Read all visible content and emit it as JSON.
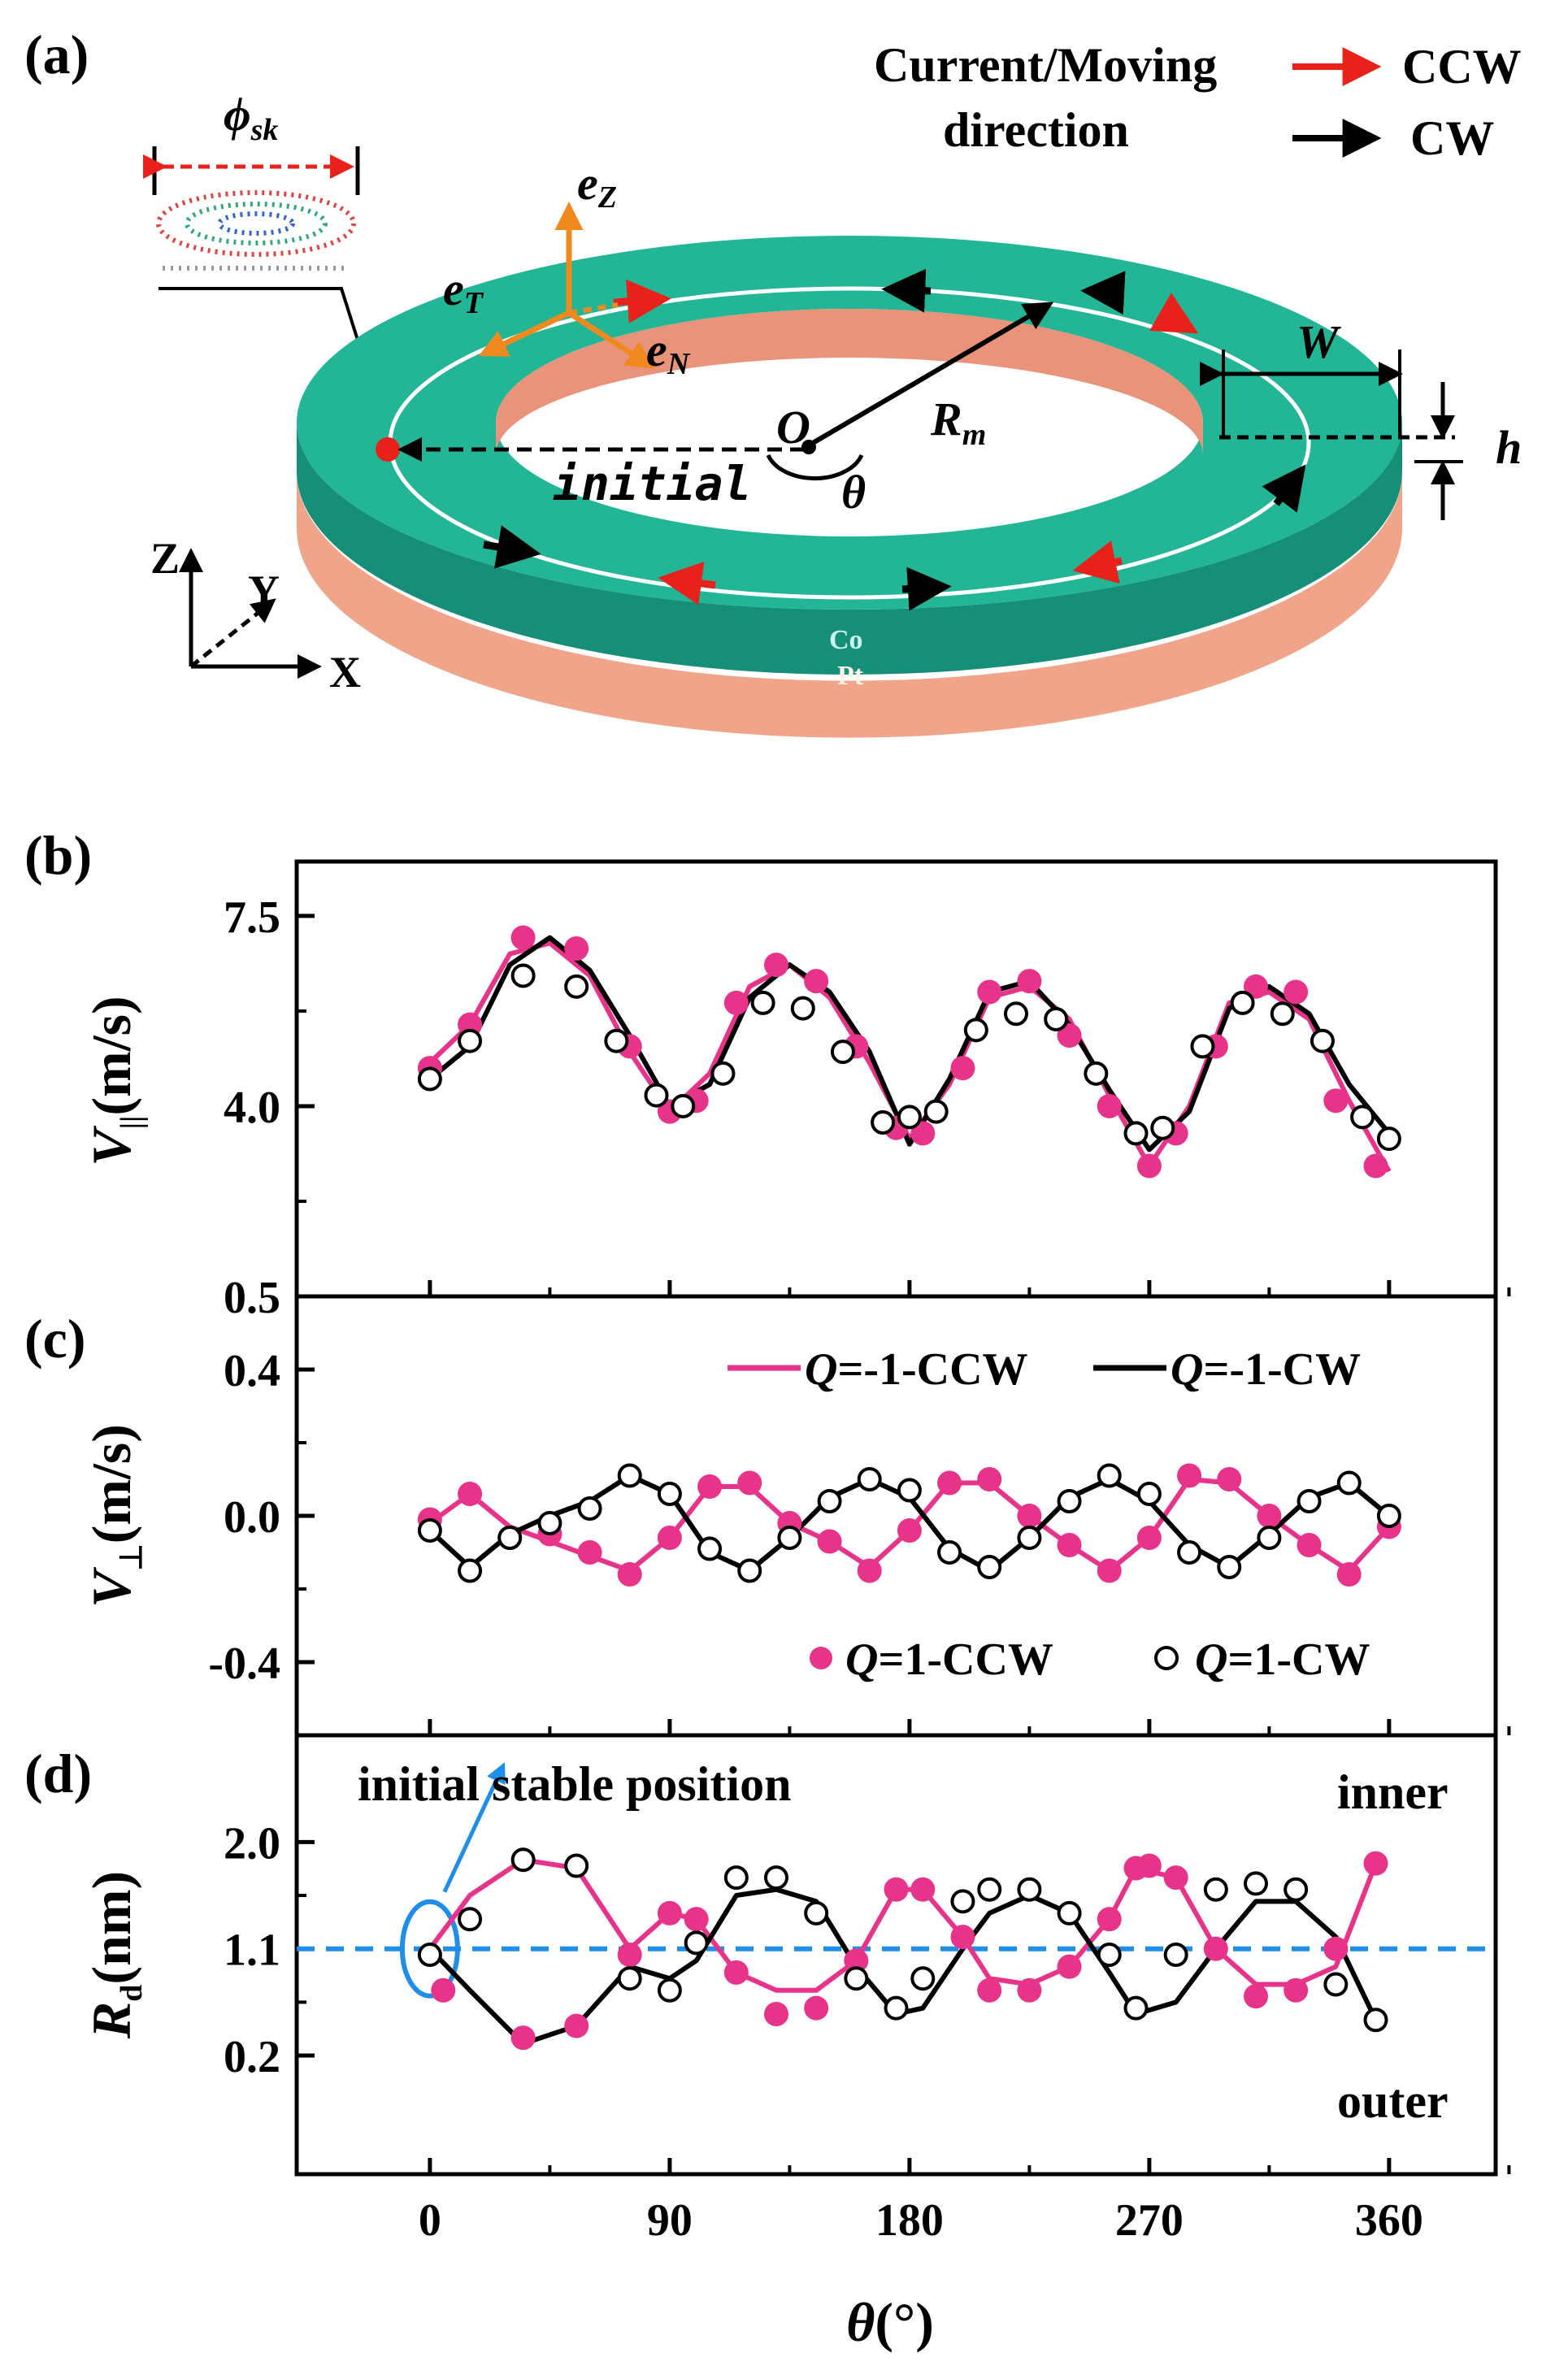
{
  "panel_a": {
    "label": "(a)",
    "skyrmion_diameter": "ϕ",
    "skyrmion_diameter_sub": "sk",
    "legend_title_1": "Current/Moving",
    "legend_title_2": "direction",
    "legend_ccw": "CCW",
    "legend_cw": "CW",
    "legend_ccw_color": "#e8221a",
    "legend_cw_color": "#000000",
    "vec_z": "e",
    "vec_z_sub": "Z",
    "vec_t": "e",
    "vec_t_sub": "T",
    "vec_n": "e",
    "vec_n_sub": "N",
    "origin": "O",
    "radius": "R",
    "radius_sub": "m",
    "angle": "θ",
    "initial": "initial",
    "width": "W",
    "thickness": "h",
    "axis_z": "Z",
    "axis_y": "Y",
    "axis_x": "X",
    "layer_top": "Co",
    "layer_bottom": "Pt",
    "ring_top_color": "#1fa58b",
    "ring_bottom_color": "#f0a58a",
    "vector_color": "#f08a1e"
  },
  "chart_data": [
    {
      "panel": "(b)",
      "type": "line",
      "ylabel": "V",
      "ylabel_sub": "||",
      "ylabel_unit": "(m/s)",
      "ylim": [
        0.5,
        8.5
      ],
      "yticks": [
        "0.5",
        "4.0",
        "7.5"
      ],
      "ytick_values": [
        0.5,
        4.0,
        7.5
      ],
      "xlim": [
        -50,
        400
      ],
      "series": [
        {
          "name": "Q=-1-CCW",
          "color": "#e8338a",
          "style": "line",
          "x": [
            0,
            15,
            30,
            45,
            60,
            75,
            90,
            105,
            120,
            135,
            150,
            165,
            180,
            195,
            210,
            225,
            240,
            255,
            270,
            285,
            300,
            315,
            330,
            345,
            360
          ],
          "y": [
            4.8,
            5.5,
            6.8,
            7.0,
            6.4,
            5.0,
            3.9,
            4.6,
            6.2,
            6.6,
            6.0,
            4.8,
            3.4,
            4.4,
            6.0,
            6.2,
            5.6,
            4.2,
            2.9,
            4.0,
            5.9,
            6.1,
            5.6,
            4.1,
            2.8
          ]
        },
        {
          "name": "Q=-1-CW",
          "color": "#000000",
          "style": "line",
          "x": [
            0,
            15,
            30,
            45,
            60,
            75,
            90,
            105,
            120,
            135,
            150,
            165,
            180,
            195,
            210,
            225,
            240,
            255,
            270,
            285,
            300,
            315,
            330,
            345,
            360
          ],
          "y": [
            4.5,
            5.1,
            6.6,
            7.1,
            6.5,
            5.3,
            4.0,
            4.4,
            6.0,
            6.6,
            6.1,
            5.0,
            3.3,
            4.5,
            6.1,
            6.3,
            5.5,
            4.3,
            3.2,
            3.9,
            5.8,
            6.2,
            5.7,
            4.4,
            3.5
          ]
        },
        {
          "name": "Q=1-CCW",
          "color": "#e8338a",
          "style": "filled",
          "x": [
            0,
            15,
            35,
            55,
            75,
            90,
            100,
            115,
            130,
            145,
            160,
            175,
            185,
            200,
            210,
            225,
            240,
            255,
            270,
            280,
            295,
            310,
            325,
            340,
            355
          ],
          "y": [
            4.7,
            5.5,
            7.1,
            6.9,
            5.1,
            3.9,
            4.1,
            5.9,
            6.6,
            6.3,
            5.1,
            3.6,
            3.5,
            4.7,
            6.1,
            6.3,
            5.3,
            4.0,
            2.9,
            3.5,
            5.1,
            6.2,
            6.1,
            4.1,
            2.9
          ]
        },
        {
          "name": "Q=1-CW",
          "color": "#000000",
          "style": "open",
          "x": [
            0,
            15,
            35,
            55,
            70,
            85,
            95,
            110,
            125,
            140,
            155,
            170,
            180,
            190,
            205,
            220,
            235,
            250,
            265,
            275,
            290,
            305,
            320,
            335,
            350,
            360
          ],
          "y": [
            4.5,
            5.2,
            6.4,
            6.2,
            5.2,
            4.2,
            4.0,
            4.6,
            5.9,
            5.8,
            5.0,
            3.7,
            3.8,
            3.9,
            5.4,
            5.7,
            5.6,
            4.6,
            3.5,
            3.6,
            5.1,
            5.9,
            5.7,
            5.2,
            3.8,
            3.4
          ]
        }
      ]
    },
    {
      "panel": "(c)",
      "type": "line",
      "ylabel": "V",
      "ylabel_sub": "⊥",
      "ylabel_unit": "(m/s)",
      "ylim": [
        -0.6,
        0.6
      ],
      "yticks": [
        "-0.4",
        "0.0",
        "0.4"
      ],
      "ytick_values": [
        -0.4,
        0.0,
        0.4
      ],
      "xlim": [
        -50,
        400
      ],
      "legend_top": [
        {
          "q": "Q",
          "text": "=-1-CCW",
          "color": "#e8338a"
        },
        {
          "q": "Q",
          "text": "=-1-CW",
          "color": "#000000"
        }
      ],
      "legend_bottom": [
        {
          "q": "Q",
          "text": "=1-CCW",
          "color": "#e8338a",
          "style": "filled"
        },
        {
          "q": "Q",
          "text": "=1-CW",
          "color": "#000000",
          "style": "open"
        }
      ],
      "series": [
        {
          "name": "Q=-1-CCW",
          "color": "#e8338a",
          "style": "line",
          "x": [
            0,
            15,
            30,
            45,
            60,
            75,
            90,
            105,
            120,
            135,
            150,
            165,
            180,
            195,
            210,
            225,
            240,
            255,
            270,
            285,
            300,
            315,
            330,
            345,
            360
          ],
          "y": [
            -0.02,
            0.06,
            -0.03,
            -0.07,
            -0.11,
            -0.15,
            -0.06,
            0.08,
            0.08,
            -0.02,
            -0.07,
            -0.14,
            -0.04,
            0.09,
            0.09,
            0.0,
            -0.08,
            -0.15,
            -0.06,
            0.1,
            0.09,
            0.0,
            -0.08,
            -0.15,
            -0.03
          ]
        },
        {
          "name": "Q=-1-CW",
          "color": "#000000",
          "style": "line",
          "x": [
            0,
            15,
            30,
            45,
            60,
            75,
            90,
            105,
            120,
            135,
            150,
            165,
            180,
            195,
            210,
            225,
            240,
            255,
            270,
            285,
            300,
            315,
            330,
            345,
            360
          ],
          "y": [
            -0.04,
            -0.14,
            -0.05,
            0.0,
            0.04,
            0.11,
            0.06,
            -0.1,
            -0.15,
            -0.06,
            0.05,
            0.1,
            0.05,
            -0.09,
            -0.15,
            -0.06,
            0.05,
            0.1,
            0.04,
            -0.08,
            -0.14,
            -0.05,
            0.05,
            0.09,
            0.0
          ]
        },
        {
          "name": "Q=1-CCW",
          "color": "#e8338a",
          "style": "filled",
          "x": [
            0,
            15,
            30,
            45,
            60,
            75,
            90,
            105,
            120,
            135,
            150,
            165,
            180,
            195,
            210,
            225,
            240,
            255,
            270,
            285,
            300,
            315,
            330,
            345,
            360
          ],
          "y": [
            -0.01,
            0.06,
            -0.06,
            -0.05,
            -0.1,
            -0.16,
            -0.06,
            0.08,
            0.09,
            -0.02,
            -0.07,
            -0.15,
            -0.04,
            0.09,
            0.1,
            0.0,
            -0.08,
            -0.15,
            -0.06,
            0.11,
            0.1,
            0.0,
            -0.08,
            -0.16,
            -0.03
          ]
        },
        {
          "name": "Q=1-CW",
          "color": "#000000",
          "style": "open",
          "x": [
            0,
            15,
            30,
            45,
            60,
            75,
            90,
            105,
            120,
            135,
            150,
            165,
            180,
            195,
            210,
            225,
            240,
            255,
            270,
            285,
            300,
            315,
            330,
            345,
            360
          ],
          "y": [
            -0.04,
            -0.15,
            -0.06,
            -0.02,
            0.02,
            0.11,
            0.06,
            -0.09,
            -0.15,
            -0.06,
            0.04,
            0.1,
            0.07,
            -0.1,
            -0.14,
            -0.06,
            0.04,
            0.11,
            0.06,
            -0.1,
            -0.14,
            -0.06,
            0.04,
            0.09,
            0.0
          ]
        }
      ]
    },
    {
      "panel": "(d)",
      "type": "line",
      "ylabel": "R",
      "ylabel_sub": "d",
      "ylabel_unit": "(nm)",
      "ylim": [
        -0.8,
        2.9
      ],
      "yticks": [
        "0.2",
        "1.1",
        "2.0"
      ],
      "ytick_values": [
        0.2,
        1.1,
        2.0
      ],
      "xlim": [
        -50,
        400
      ],
      "xticks": [
        "0",
        "90",
        "180",
        "270",
        "360"
      ],
      "xtick_values": [
        0,
        90,
        180,
        270,
        360
      ],
      "xlabel": "θ",
      "xlabel_unit": "(°)",
      "reference_line": 1.1,
      "reference_color": "#1f8ee8",
      "annotation": "initial stable position",
      "label_inner": "inner",
      "label_outer": "outer",
      "series": [
        {
          "name": "Q=-1-CCW",
          "color": "#e8338a",
          "style": "line",
          "x": [
            0,
            15,
            35,
            55,
            75,
            90,
            100,
            115,
            130,
            145,
            160,
            175,
            185,
            200,
            210,
            225,
            240,
            255,
            265,
            280,
            295,
            310,
            325,
            340,
            355
          ],
          "y": [
            1.1,
            1.55,
            1.85,
            1.78,
            1.1,
            1.4,
            1.35,
            0.9,
            0.75,
            0.75,
            1.0,
            1.6,
            1.6,
            1.2,
            0.85,
            0.8,
            0.95,
            1.35,
            1.78,
            1.7,
            1.1,
            0.8,
            0.8,
            0.95,
            1.82
          ]
        },
        {
          "name": "Q=-1-CW",
          "color": "#000000",
          "style": "line",
          "x": [
            0,
            15,
            35,
            55,
            75,
            90,
            100,
            115,
            130,
            145,
            160,
            175,
            185,
            200,
            210,
            225,
            240,
            255,
            265,
            280,
            295,
            310,
            325,
            340,
            355
          ],
          "y": [
            1.1,
            0.75,
            0.3,
            0.45,
            0.95,
            0.85,
            1.0,
            1.55,
            1.6,
            1.5,
            0.95,
            0.55,
            0.6,
            1.1,
            1.4,
            1.55,
            1.4,
            0.9,
            0.55,
            0.65,
            1.1,
            1.5,
            1.5,
            1.2,
            0.5
          ]
        },
        {
          "name": "Q=1-CCW",
          "color": "#e8338a",
          "style": "filled",
          "x": [
            5,
            35,
            55,
            75,
            90,
            100,
            115,
            130,
            145,
            160,
            175,
            185,
            200,
            210,
            225,
            240,
            255,
            265,
            270,
            280,
            295,
            310,
            325,
            340,
            355
          ],
          "y": [
            0.75,
            0.35,
            0.45,
            1.05,
            1.4,
            1.35,
            0.9,
            0.55,
            0.6,
            1.0,
            1.6,
            1.6,
            1.2,
            0.75,
            0.75,
            0.95,
            1.35,
            1.78,
            1.8,
            1.7,
            1.1,
            0.7,
            0.75,
            1.1,
            1.82
          ]
        },
        {
          "name": "Q=1-CW",
          "color": "#000000",
          "style": "open",
          "x": [
            0,
            15,
            35,
            55,
            75,
            90,
            100,
            115,
            130,
            145,
            160,
            175,
            185,
            200,
            210,
            225,
            240,
            255,
            265,
            280,
            295,
            310,
            325,
            340,
            355
          ],
          "y": [
            1.05,
            1.35,
            1.85,
            1.8,
            0.85,
            0.75,
            1.15,
            1.7,
            1.7,
            1.4,
            0.85,
            0.6,
            0.85,
            1.5,
            1.6,
            1.6,
            1.4,
            1.05,
            0.6,
            1.05,
            1.6,
            1.65,
            1.6,
            0.8,
            0.5
          ]
        }
      ]
    }
  ]
}
